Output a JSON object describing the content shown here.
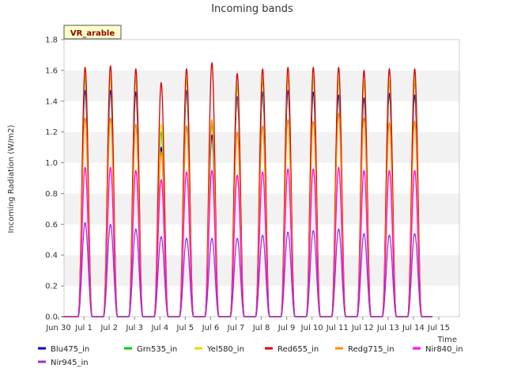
{
  "chart_data": {
    "type": "line",
    "title": "Incoming bands",
    "xlabel": "Time",
    "ylabel": "Incoming Radiation (W/m2)",
    "site_badge": "VR_arable",
    "ylim": [
      0.0,
      1.8
    ],
    "xlim": [
      "2023-06-30",
      "2023-07-15"
    ],
    "y_ticks": [
      "0.0",
      "0.2",
      "0.4",
      "0.6",
      "0.8",
      "1.0",
      "1.2",
      "1.4",
      "1.6",
      "1.8"
    ],
    "x_ticks": [
      "Jun 30",
      "Jul 1",
      "Jul 2",
      "Jul 3",
      "Jul 4",
      "Jul 5",
      "Jul 6",
      "Jul 7",
      "Jul 8",
      "Jul 9",
      "Jul 10",
      "Jul 11",
      "Jul 12",
      "Jul 13",
      "Jul 14",
      "Jul 15"
    ],
    "grid": "horizontal bands",
    "legend_position": "bottom",
    "days": [
      "Jul 1",
      "Jul 2",
      "Jul 3",
      "Jul 4",
      "Jul 5",
      "Jul 6",
      "Jul 7",
      "Jul 8",
      "Jul 9",
      "Jul 10",
      "Jul 11",
      "Jul 12",
      "Jul 13",
      "Jul 14"
    ],
    "series": [
      {
        "name": "Blu475_in",
        "color": "#0000cc",
        "daily_peaks": [
          1.47,
          1.47,
          1.46,
          1.1,
          1.47,
          1.18,
          1.43,
          1.46,
          1.47,
          1.46,
          1.44,
          1.42,
          1.45,
          1.44
        ]
      },
      {
        "name": "Grn535_in",
        "color": "#00cc00",
        "daily_peaks": [
          1.55,
          1.56,
          1.55,
          1.2,
          1.54,
          1.25,
          1.5,
          1.53,
          1.55,
          1.55,
          1.54,
          1.52,
          1.53,
          1.53
        ]
      },
      {
        "name": "Yel580_in",
        "color": "#dddd00",
        "daily_peaks": [
          1.57,
          1.57,
          1.56,
          1.25,
          1.55,
          1.28,
          1.51,
          1.55,
          1.56,
          1.56,
          1.55,
          1.53,
          1.54,
          1.55
        ]
      },
      {
        "name": "Red655_in",
        "color": "#dd0000",
        "daily_peaks": [
          1.62,
          1.63,
          1.61,
          1.52,
          1.61,
          1.65,
          1.58,
          1.61,
          1.62,
          1.62,
          1.62,
          1.6,
          1.61,
          1.61
        ]
      },
      {
        "name": "Redg715_in",
        "color": "#ff8c00",
        "daily_peaks": [
          1.29,
          1.29,
          1.25,
          1.07,
          1.24,
          1.28,
          1.2,
          1.24,
          1.28,
          1.27,
          1.32,
          1.29,
          1.26,
          1.27
        ]
      },
      {
        "name": "Nir840_in",
        "color": "#ff00ff",
        "daily_peaks": [
          0.97,
          0.97,
          0.95,
          0.89,
          0.94,
          0.95,
          0.92,
          0.94,
          0.96,
          0.96,
          0.97,
          0.95,
          0.95,
          0.95
        ]
      },
      {
        "name": "Nir945_in",
        "color": "#9933cc",
        "daily_peaks": [
          0.61,
          0.6,
          0.57,
          0.52,
          0.51,
          0.51,
          0.51,
          0.53,
          0.55,
          0.56,
          0.57,
          0.54,
          0.53,
          0.54
        ]
      }
    ]
  }
}
